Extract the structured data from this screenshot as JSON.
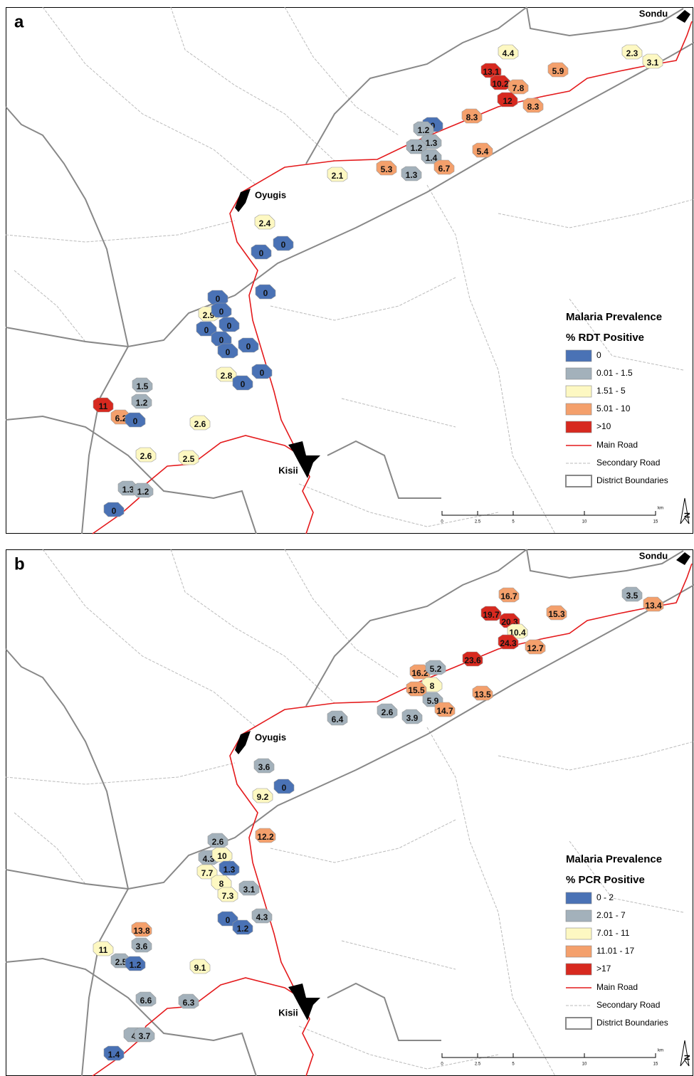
{
  "panels": [
    {
      "label": "a",
      "places": [
        "Sondu",
        "Oyugis",
        "Kisii"
      ],
      "legend": {
        "title": "Malaria Prevalence",
        "subtitle": "% RDT Positive",
        "items": [
          {
            "label": "0",
            "color": "#4a72b5"
          },
          {
            "label": "0.01 - 1.5",
            "color": "#a3b1bb"
          },
          {
            "label": "1.51 - 5",
            "color": "#fdf8c2"
          },
          {
            "label": "5.01 - 10",
            "color": "#f4a06c"
          },
          {
            "label": ">10",
            "color": "#d7291f"
          }
        ],
        "lines": [
          "Main Road",
          "Secondary Road",
          "District Boundaries"
        ]
      },
      "scale": {
        "ticks": [
          0,
          2.5,
          5,
          10,
          15
        ],
        "unit": "km"
      },
      "north": "N",
      "clusters": [
        4.4,
        13.1,
        5.9,
        10.2,
        7.8,
        12,
        8.3,
        8.3,
        2.3,
        3.1,
        0,
        1.2,
        1.3,
        1.2,
        1.4,
        5.4,
        5.3,
        6.7,
        1.3,
        2.1,
        2.4,
        0,
        0,
        0,
        0,
        2.9,
        0,
        0,
        0,
        0,
        0,
        0,
        2.8,
        0,
        0,
        1.5,
        1.2,
        11,
        6.2,
        0,
        2.6,
        2.6,
        2.5,
        1.3,
        1.2,
        0
      ]
    },
    {
      "label": "b",
      "places": [
        "Sondu",
        "Oyugis",
        "Kisii"
      ],
      "legend": {
        "title": "Malaria Prevalence",
        "subtitle": "% PCR Positive",
        "items": [
          {
            "label": "0 - 2",
            "color": "#4a72b5"
          },
          {
            "label": "2.01 - 7",
            "color": "#a3b1bb"
          },
          {
            "label": "7.01 - 11",
            "color": "#fdf8c2"
          },
          {
            "label": "11.01 - 17",
            "color": "#f4a06c"
          },
          {
            "label": ">17",
            "color": "#d7291f"
          }
        ],
        "lines": [
          "Main Road",
          "Secondary Road",
          "District Boundaries"
        ]
      },
      "scale": {
        "ticks": [
          0,
          2.5,
          5,
          10,
          15
        ],
        "unit": "km"
      },
      "north": "N",
      "clusters": [
        16.7,
        19.7,
        15.3,
        20.3,
        10.4,
        24.3,
        12.7,
        3.5,
        13.4,
        23.6,
        16.2,
        5.2,
        8,
        15.5,
        5.9,
        14.7,
        13.5,
        6.4,
        2.6,
        3.9,
        3.6,
        0,
        9.2,
        12.2,
        2.6,
        4.3,
        10,
        7.7,
        1.3,
        8,
        7.3,
        3.1,
        0,
        4.3,
        1.2,
        13.8,
        3.6,
        11,
        2.5,
        1.2,
        9.1,
        6.6,
        6.3,
        4,
        3.7,
        1.4
      ]
    }
  ]
}
